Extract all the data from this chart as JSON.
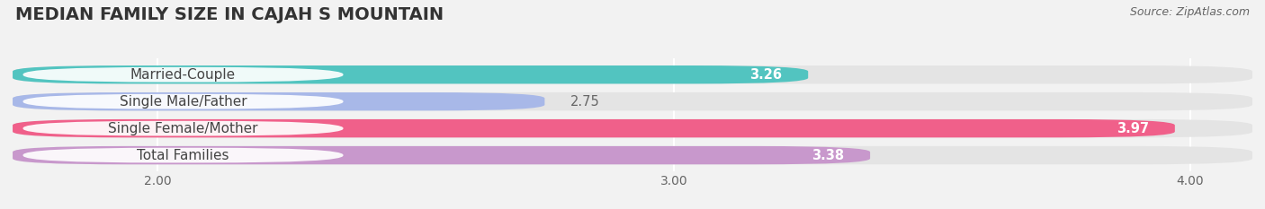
{
  "title": "MEDIAN FAMILY SIZE IN CAJAH S MOUNTAIN",
  "source": "Source: ZipAtlas.com",
  "categories": [
    "Married-Couple",
    "Single Male/Father",
    "Single Female/Mother",
    "Total Families"
  ],
  "values": [
    3.26,
    2.75,
    3.97,
    3.38
  ],
  "bar_colors": [
    "#52c4c0",
    "#a8b8e8",
    "#f0608a",
    "#c898cc"
  ],
  "value_text_colors": [
    "white",
    "#777777",
    "white",
    "white"
  ],
  "xlim_min": 1.72,
  "xlim_max": 4.12,
  "xticks": [
    2.0,
    3.0,
    4.0
  ],
  "xtick_labels": [
    "2.00",
    "3.00",
    "4.00"
  ],
  "background_color": "#f2f2f2",
  "bar_bg_color": "#e4e4e4",
  "bar_height": 0.68,
  "bar_gap": 0.08,
  "title_fontsize": 14,
  "label_fontsize": 11,
  "value_fontsize": 10.5,
  "source_fontsize": 9
}
